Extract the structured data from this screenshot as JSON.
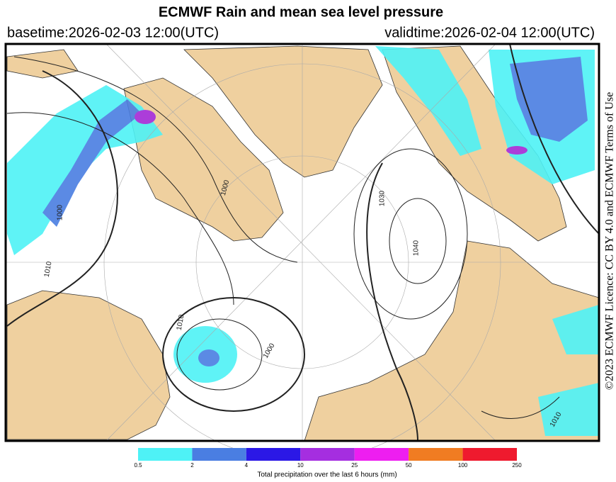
{
  "header": {
    "title": "ECMWF Rain and mean sea level pressure",
    "basetime": "basetime:2026-02-03 12:00(UTC)",
    "validtime": "validtime:2026-02-04 12:00(UTC)"
  },
  "map": {
    "contour_labels": [
      "1000",
      "1030",
      "1040",
      "1010",
      "1000",
      "1010",
      "1010",
      "1000"
    ]
  },
  "credit": "©2023 ECMWF Licence: CC BY 4.0 and ECMWF Terms of Use",
  "legend": {
    "ticks": [
      "0.5",
      "2",
      "4",
      "10",
      "25",
      "50",
      "100",
      "250"
    ],
    "colors": [
      "#4ef2f6",
      "#4a7ee2",
      "#2b18e6",
      "#a52ee0",
      "#ee1ef0",
      "#f07c22",
      "#ef1a2e"
    ],
    "caption": "Total precipitation over the last 6 hours (mm)"
  }
}
